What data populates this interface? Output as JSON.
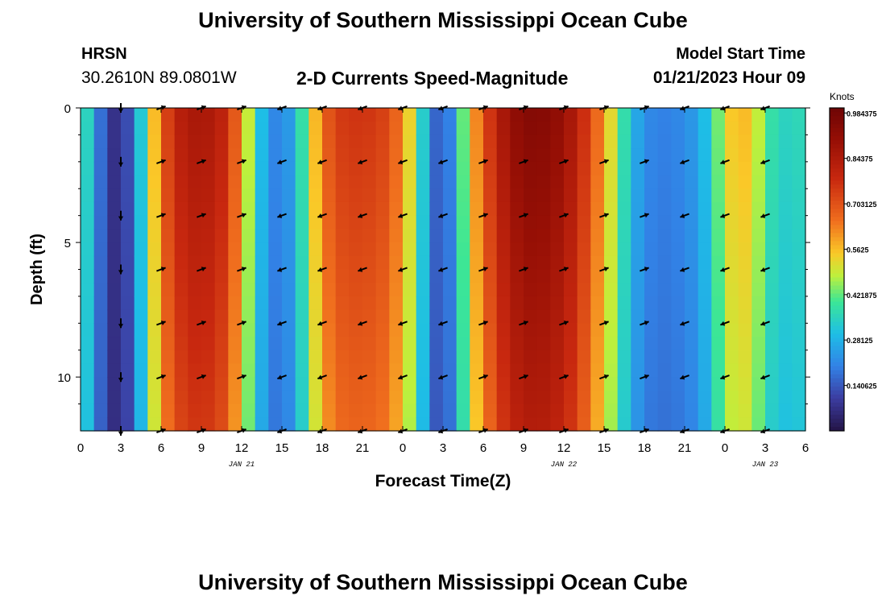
{
  "header": {
    "title": "University of Southern Mississippi Ocean Cube",
    "station": "HRSN",
    "coords": "30.2610N  89.0801W",
    "subtitle": "2-D Currents Speed-Magnitude",
    "model_start_label": "Model Start Time",
    "model_start_value": "01/21/2023 Hour 09"
  },
  "footer": {
    "title": "University of Southern Mississippi Ocean Cube"
  },
  "chart_data": {
    "type": "heatmap",
    "title": "2-D Currents Speed-Magnitude",
    "xlabel": "Forecast Time(Z)",
    "ylabel": "Depth (ft)",
    "xlim": [
      0,
      54
    ],
    "ylim": [
      0,
      12
    ],
    "y_inverted": true,
    "x_ticks": [
      0,
      3,
      6,
      9,
      12,
      15,
      18,
      21,
      24,
      27,
      30,
      33,
      36,
      39,
      42,
      45,
      48,
      51,
      54
    ],
    "x_tick_labels": [
      "0",
      "3",
      "6",
      "9",
      "12",
      "15",
      "18",
      "21",
      "0",
      "3",
      "6",
      "9",
      "12",
      "15",
      "18",
      "21",
      "0",
      "3",
      "6"
    ],
    "y_ticks": [
      0,
      5,
      10
    ],
    "y_tick_labels": [
      "0",
      "5",
      "10"
    ],
    "date_labels": [
      {
        "x": 12,
        "text": "JAN 21"
      },
      {
        "x": 36,
        "text": "JAN 22"
      },
      {
        "x": 51,
        "text": "JAN 23"
      }
    ],
    "colorbar": {
      "label": "Knots",
      "min": 0,
      "max": 1.0,
      "ticks": [
        0.140625,
        0.28125,
        0.421875,
        0.5625,
        0.703125,
        0.84375,
        0.984375
      ],
      "tick_labels": [
        "0.140625",
        "0.28125",
        "0.421875",
        "0.5625",
        "0.703125",
        "0.84375",
        "0.984375"
      ]
    },
    "speed_profile": {
      "times": [
        0,
        1,
        2,
        3,
        4,
        5,
        6,
        7,
        8,
        9,
        10,
        11,
        12,
        13,
        14,
        15,
        16,
        17,
        18,
        19,
        20,
        21,
        22,
        23,
        24,
        25,
        26,
        27,
        28,
        29,
        30,
        31,
        32,
        33,
        34,
        35,
        36,
        37,
        38,
        39,
        40,
        41,
        42,
        43,
        44,
        45,
        46,
        47,
        48,
        49,
        50,
        51,
        52,
        53,
        54
      ],
      "surface_knots": [
        0.45,
        0.25,
        0.1,
        0.05,
        0.2,
        0.45,
        0.68,
        0.8,
        0.85,
        0.86,
        0.84,
        0.78,
        0.6,
        0.38,
        0.22,
        0.2,
        0.28,
        0.48,
        0.66,
        0.74,
        0.76,
        0.76,
        0.75,
        0.72,
        0.62,
        0.45,
        0.22,
        0.1,
        0.3,
        0.55,
        0.7,
        0.82,
        0.9,
        0.94,
        0.95,
        0.93,
        0.9,
        0.82,
        0.72,
        0.6,
        0.45,
        0.3,
        0.22,
        0.2,
        0.2,
        0.22,
        0.25,
        0.35,
        0.52,
        0.58,
        0.55,
        0.42,
        0.34,
        0.36,
        0.36
      ],
      "depth_attenuation": 0.12
    },
    "vectors": {
      "times": [
        3,
        6,
        9,
        12,
        15,
        18,
        21,
        24,
        27,
        30,
        33,
        36,
        39,
        42,
        45,
        48,
        51
      ],
      "depths": [
        0,
        2,
        4,
        6,
        8,
        10,
        12
      ],
      "directions_deg": [
        270,
        20,
        20,
        20,
        200,
        200,
        200,
        200,
        200,
        20,
        20,
        20,
        20,
        20,
        200,
        200,
        200
      ],
      "speed_knots": [
        0.08,
        0.6,
        0.8,
        0.65,
        0.25,
        0.6,
        0.72,
        0.7,
        0.15,
        0.7,
        0.9,
        0.85,
        0.55,
        0.3,
        0.2,
        0.5,
        0.42
      ]
    }
  }
}
